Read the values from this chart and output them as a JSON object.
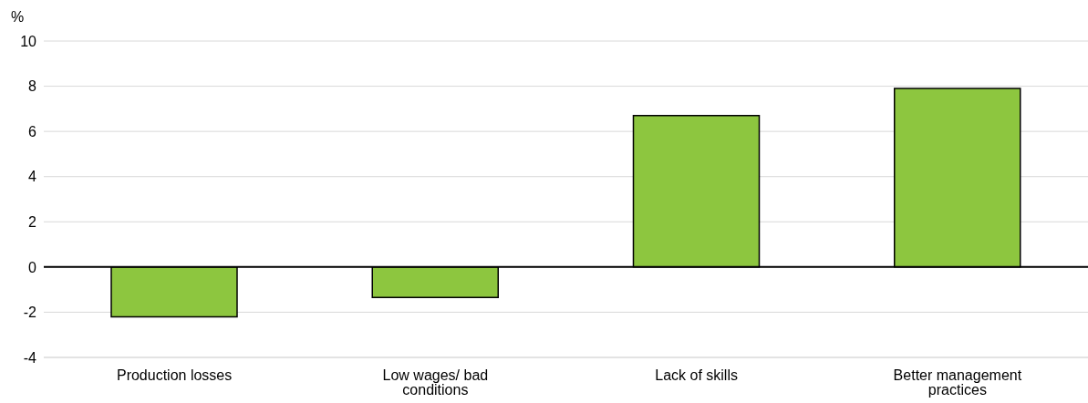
{
  "chart_data": {
    "type": "bar",
    "ylabel": "%",
    "categories": [
      "Production losses",
      "Low wages/ bad conditions",
      "Lack of skills",
      "Better management practices"
    ],
    "values": [
      -2.2,
      -1.35,
      6.7,
      7.9
    ],
    "color": "#8dc63f",
    "ylim": [
      -4,
      10
    ],
    "yticks": [
      -4,
      -2,
      0,
      2,
      4,
      6,
      8,
      10
    ],
    "grid": "y"
  }
}
